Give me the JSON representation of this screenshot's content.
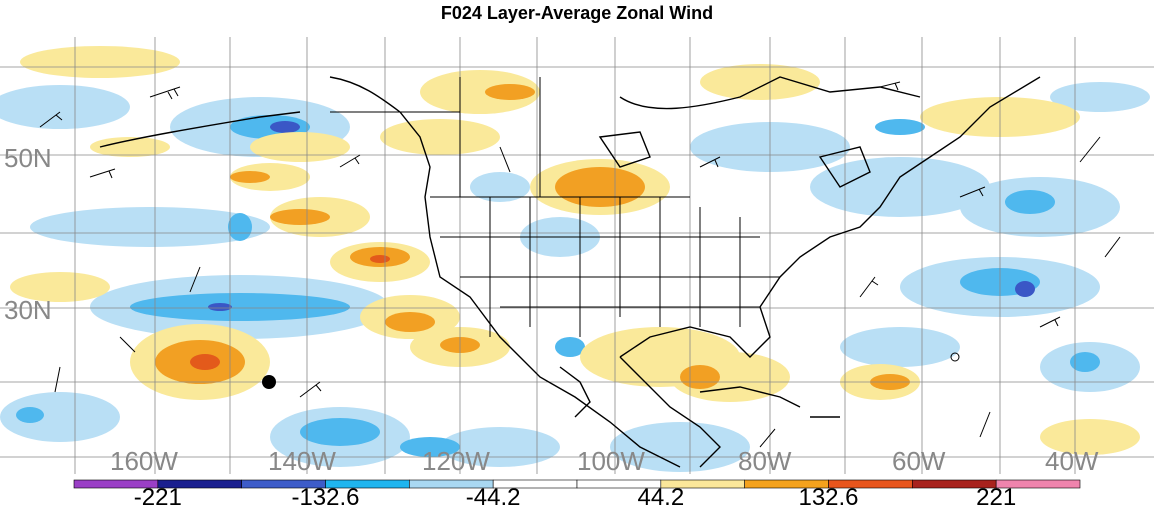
{
  "title": "F024 Layer-Average Zonal Wind",
  "latitudes": [
    {
      "label": "50N",
      "top": 143
    },
    {
      "label": "30N",
      "top": 295
    }
  ],
  "longitudes": [
    "160W",
    "140W",
    "120W",
    "100W",
    "80W",
    "60W",
    "40W"
  ],
  "legend": {
    "colors": [
      "#9a3fc6",
      "#1a1f8f",
      "#3d5cc9",
      "#1fb5ef",
      "#a9d8f2",
      "#ffffff",
      "#ffffff",
      "#fbe79a",
      "#f4a21d",
      "#e8551c",
      "#a8221d",
      "#ef84ad"
    ],
    "labels": [
      "-221",
      "-132.6",
      "-44.2",
      "44.2",
      "132.6",
      "221"
    ]
  },
  "colors": {
    "neg_light": "#b9dff5",
    "neg_mid": "#4fb8ee",
    "neg_dark": "#3a57c6",
    "pos_light": "#fae99a",
    "pos_mid": "#f2a023",
    "pos_dark": "#e35a1b"
  }
}
